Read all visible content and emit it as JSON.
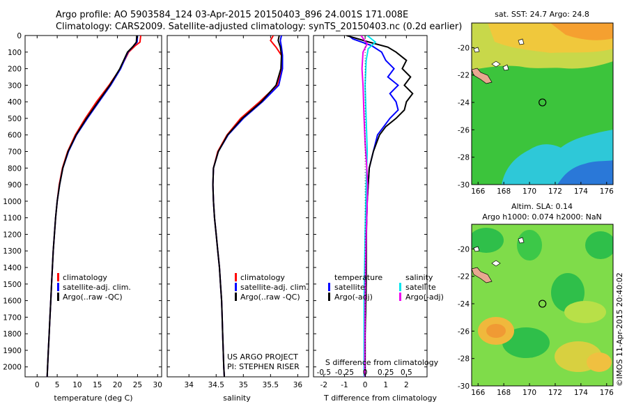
{
  "header": {
    "line1": "Argo profile: AO 5903584_124 03-Apr-2015 20150403_896 24.001S 171.008E",
    "line2": "Climatology: CARS2009. Satellite-adjusted climatology: synTS_20150403.nc (0.2d earlier)"
  },
  "colors": {
    "climatology": "#ff0000",
    "satellite": "#0000ff",
    "argo": "#000000",
    "salinity_sat": "#00e5ee",
    "salinity_argo": "#ee00ee"
  },
  "depth_axis": {
    "ylim": [
      0,
      2060
    ],
    "ticks": [
      0,
      100,
      200,
      300,
      400,
      500,
      600,
      700,
      800,
      900,
      1000,
      1100,
      1200,
      1300,
      1400,
      1500,
      1600,
      1700,
      1800,
      1900,
      2000
    ]
  },
  "chart_data": [
    {
      "type": "line",
      "name": "temperature-profile",
      "xlabel": "temperature (deg C)",
      "xlim": [
        -3,
        31
      ],
      "xticks": [
        0,
        5,
        10,
        15,
        20,
        25,
        30
      ],
      "legend": {
        "position": "lower-middle",
        "entries": [
          "climatology",
          "satellite-adj. clim.",
          "Argo(..raw -QC)"
        ]
      },
      "series": [
        {
          "name": "climatology",
          "color": "#ff0000",
          "points": [
            [
              25.8,
              0
            ],
            [
              25.6,
              40
            ],
            [
              24.5,
              60
            ],
            [
              22.8,
              100
            ],
            [
              20.7,
              200
            ],
            [
              17.9,
              300
            ],
            [
              14.8,
              400
            ],
            [
              12.0,
              500
            ],
            [
              9.5,
              600
            ],
            [
              7.6,
              700
            ],
            [
              6.3,
              800
            ],
            [
              5.5,
              900
            ],
            [
              5.0,
              1000
            ],
            [
              4.6,
              1100
            ],
            [
              4.3,
              1200
            ],
            [
              4.0,
              1300
            ],
            [
              3.8,
              1400
            ],
            [
              3.6,
              1500
            ],
            [
              3.4,
              1600
            ],
            [
              3.2,
              1700
            ],
            [
              3.0,
              1800
            ],
            [
              2.8,
              1900
            ],
            [
              2.6,
              2000
            ],
            [
              2.5,
              2060
            ]
          ]
        },
        {
          "name": "satellite-adj. clim.",
          "color": "#0000ff",
          "points": [
            [
              25.0,
              0
            ],
            [
              24.9,
              40
            ],
            [
              24.1,
              60
            ],
            [
              22.6,
              100
            ],
            [
              20.8,
              200
            ],
            [
              18.3,
              300
            ],
            [
              15.4,
              400
            ],
            [
              12.5,
              500
            ],
            [
              9.8,
              600
            ],
            [
              7.8,
              700
            ],
            [
              6.4,
              800
            ],
            [
              5.6,
              900
            ],
            [
              5.0,
              1000
            ],
            [
              4.6,
              1100
            ],
            [
              4.3,
              1200
            ],
            [
              4.0,
              1300
            ],
            [
              3.8,
              1400
            ],
            [
              3.6,
              1500
            ],
            [
              3.4,
              1600
            ],
            [
              3.2,
              1700
            ],
            [
              3.0,
              1800
            ],
            [
              2.8,
              1900
            ],
            [
              2.6,
              2000
            ],
            [
              2.5,
              2060
            ]
          ]
        },
        {
          "name": "Argo(..raw -QC)",
          "color": "#000000",
          "points": [
            [
              24.8,
              0
            ],
            [
              24.7,
              40
            ],
            [
              23.9,
              65
            ],
            [
              22.5,
              100
            ],
            [
              20.6,
              200
            ],
            [
              18.1,
              300
            ],
            [
              15.2,
              400
            ],
            [
              12.3,
              500
            ],
            [
              9.7,
              600
            ],
            [
              7.7,
              700
            ],
            [
              6.4,
              800
            ],
            [
              5.6,
              900
            ],
            [
              5.0,
              1000
            ],
            [
              4.6,
              1100
            ],
            [
              4.3,
              1200
            ],
            [
              4.0,
              1300
            ],
            [
              3.8,
              1400
            ],
            [
              3.6,
              1500
            ],
            [
              3.4,
              1600
            ],
            [
              3.2,
              1700
            ],
            [
              3.0,
              1800
            ],
            [
              2.8,
              1900
            ],
            [
              2.6,
              2000
            ],
            [
              2.5,
              2060
            ]
          ]
        }
      ]
    },
    {
      "type": "line",
      "name": "salinity-profile",
      "xlabel": "salinity",
      "xlim": [
        33.6,
        36.2
      ],
      "xticks": [
        34,
        34.5,
        35,
        35.5,
        36
      ],
      "legend": {
        "position": "lower-middle",
        "entries": [
          "climatology",
          "satellite-adj. clim.",
          "Argo(..raw -QC)"
        ]
      },
      "annotation": [
        "US ARGO PROJECT",
        "PI: STEPHEN RISER"
      ],
      "series": [
        {
          "name": "climatology",
          "color": "#ff0000",
          "points": [
            [
              35.55,
              0
            ],
            [
              35.5,
              30
            ],
            [
              35.6,
              70
            ],
            [
              35.7,
              120
            ],
            [
              35.7,
              200
            ],
            [
              35.62,
              300
            ],
            [
              35.3,
              400
            ],
            [
              34.95,
              500
            ],
            [
              34.7,
              600
            ],
            [
              34.53,
              700
            ],
            [
              34.45,
              800
            ],
            [
              34.44,
              900
            ],
            [
              34.45,
              1000
            ],
            [
              34.47,
              1100
            ],
            [
              34.5,
              1200
            ],
            [
              34.53,
              1300
            ],
            [
              34.56,
              1400
            ],
            [
              34.58,
              1500
            ],
            [
              34.6,
              1600
            ],
            [
              34.61,
              1700
            ],
            [
              34.62,
              1800
            ],
            [
              34.63,
              1900
            ],
            [
              34.64,
              2000
            ],
            [
              34.65,
              2060
            ]
          ]
        },
        {
          "name": "satellite-adj. clim.",
          "color": "#0000ff",
          "points": [
            [
              35.7,
              0
            ],
            [
              35.68,
              30
            ],
            [
              35.7,
              70
            ],
            [
              35.72,
              120
            ],
            [
              35.72,
              200
            ],
            [
              35.65,
              300
            ],
            [
              35.35,
              400
            ],
            [
              35.0,
              500
            ],
            [
              34.72,
              600
            ],
            [
              34.54,
              700
            ],
            [
              34.45,
              800
            ],
            [
              34.44,
              900
            ],
            [
              34.45,
              1000
            ],
            [
              34.47,
              1100
            ],
            [
              34.5,
              1200
            ],
            [
              34.53,
              1300
            ],
            [
              34.56,
              1400
            ],
            [
              34.58,
              1500
            ],
            [
              34.6,
              1600
            ],
            [
              34.61,
              1700
            ],
            [
              34.62,
              1800
            ],
            [
              34.63,
              1900
            ],
            [
              34.64,
              2000
            ],
            [
              34.65,
              2060
            ]
          ]
        },
        {
          "name": "Argo(..raw -QC)",
          "color": "#000000",
          "points": [
            [
              35.66,
              0
            ],
            [
              35.64,
              30
            ],
            [
              35.68,
              70
            ],
            [
              35.7,
              120
            ],
            [
              35.69,
              200
            ],
            [
              35.6,
              300
            ],
            [
              35.33,
              400
            ],
            [
              34.98,
              500
            ],
            [
              34.71,
              600
            ],
            [
              34.54,
              700
            ],
            [
              34.45,
              800
            ],
            [
              34.44,
              900
            ],
            [
              34.45,
              1000
            ],
            [
              34.47,
              1100
            ],
            [
              34.5,
              1200
            ],
            [
              34.53,
              1300
            ],
            [
              34.56,
              1400
            ],
            [
              34.58,
              1500
            ],
            [
              34.6,
              1600
            ],
            [
              34.61,
              1700
            ],
            [
              34.62,
              1800
            ],
            [
              34.63,
              1900
            ],
            [
              34.64,
              2000
            ],
            [
              34.65,
              2060
            ]
          ]
        }
      ]
    },
    {
      "type": "line",
      "name": "difference-profile",
      "xlabel": "T difference from climatology",
      "xlabel_top": "S difference from climatology",
      "xlim": [
        -2.5,
        3.0
      ],
      "xticks": [
        -2,
        -1,
        0,
        1,
        2
      ],
      "s_ticks": [
        {
          "value": -0.5,
          "label": "-0.5"
        },
        {
          "value": -0.25,
          "label": "-0.25"
        },
        {
          "value": 0,
          "label": "0"
        },
        {
          "value": 0.25,
          "label": "0.25"
        },
        {
          "value": 0.5,
          "label": "0.5"
        }
      ],
      "legend_left": {
        "title": "temperature",
        "entries": [
          "satellite",
          "Argo(-adj)"
        ]
      },
      "legend_right": {
        "title": "salinity",
        "entries": [
          "satellite",
          "Argo(-adj)"
        ]
      },
      "series": [
        {
          "name": "temperature satellite",
          "color": "#0000ff",
          "points": [
            [
              -0.8,
              0
            ],
            [
              -0.6,
              20
            ],
            [
              0.3,
              60
            ],
            [
              0.8,
              100
            ],
            [
              1.0,
              150
            ],
            [
              1.4,
              200
            ],
            [
              1.1,
              250
            ],
            [
              1.6,
              300
            ],
            [
              1.2,
              350
            ],
            [
              1.5,
              400
            ],
            [
              1.6,
              450
            ],
            [
              1.2,
              500
            ],
            [
              0.9,
              550
            ],
            [
              0.6,
              600
            ],
            [
              0.4,
              700
            ],
            [
              0.2,
              800
            ],
            [
              0.1,
              1000
            ],
            [
              0.05,
              1200
            ],
            [
              0.05,
              1500
            ],
            [
              0.0,
              1800
            ],
            [
              0.0,
              2060
            ]
          ]
        },
        {
          "name": "temperature Argo(-adj)",
          "color": "#000000",
          "points": [
            [
              -0.9,
              0
            ],
            [
              0.2,
              40
            ],
            [
              1.1,
              70
            ],
            [
              1.5,
              100
            ],
            [
              2.0,
              150
            ],
            [
              1.8,
              200
            ],
            [
              2.2,
              250
            ],
            [
              1.9,
              300
            ],
            [
              2.3,
              350
            ],
            [
              2.0,
              400
            ],
            [
              1.9,
              450
            ],
            [
              1.5,
              500
            ],
            [
              1.0,
              550
            ],
            [
              0.7,
              600
            ],
            [
              0.4,
              700
            ],
            [
              0.2,
              800
            ],
            [
              0.1,
              1000
            ],
            [
              0.06,
              1200
            ],
            [
              0.05,
              1500
            ],
            [
              0.0,
              1800
            ],
            [
              0.0,
              2060
            ]
          ]
        },
        {
          "name": "salinity satellite",
          "color": "#00e5ee",
          "points": [
            [
              0.1,
              0
            ],
            [
              0.5,
              40
            ],
            [
              0.15,
              80
            ],
            [
              0.05,
              150
            ],
            [
              0.0,
              300
            ],
            [
              0.05,
              500
            ],
            [
              0.1,
              700
            ],
            [
              0.05,
              900
            ],
            [
              0.0,
              1200
            ],
            [
              -0.05,
              1600
            ],
            [
              -0.05,
              2060
            ]
          ]
        },
        {
          "name": "salinity Argo(-adj)",
          "color": "#ee00ee",
          "points": [
            [
              -0.2,
              0
            ],
            [
              0.1,
              50
            ],
            [
              -0.1,
              100
            ],
            [
              -0.15,
              200
            ],
            [
              -0.1,
              300
            ],
            [
              -0.05,
              500
            ],
            [
              0.0,
              650
            ],
            [
              0.08,
              800
            ],
            [
              0.12,
              900
            ],
            [
              0.1,
              1000
            ],
            [
              0.08,
              1100
            ],
            [
              0.05,
              1200
            ],
            [
              0.02,
              1400
            ],
            [
              0.0,
              1600
            ],
            [
              -0.02,
              2060
            ]
          ]
        }
      ]
    },
    {
      "type": "heatmap",
      "name": "sst-map",
      "title": "sat. SST: 24.7  Argo: 24.8",
      "xlim": [
        165.5,
        176.5
      ],
      "ylim": [
        -30,
        -18.2
      ],
      "xticks": [
        166,
        168,
        170,
        172,
        174,
        176
      ],
      "yticks": [
        -20,
        -22,
        -24,
        -26,
        -28,
        -30
      ],
      "argo_position": {
        "lon": 171.008,
        "lat": -24.001
      }
    },
    {
      "type": "heatmap",
      "name": "sla-map",
      "title_line1": "Altim. SLA: 0.14",
      "title_line2": "Argo h1000: 0.074  h2000: NaN",
      "xlim": [
        165.5,
        176.5
      ],
      "ylim": [
        -30,
        -18.2
      ],
      "xticks": [
        166,
        168,
        170,
        172,
        174,
        176
      ],
      "yticks": [
        -20,
        -22,
        -24,
        -26,
        -28,
        -30
      ],
      "argo_position": {
        "lon": 171.008,
        "lat": -24.001
      }
    }
  ],
  "footer": {
    "credit": "©IMOS 11-Apr-2015 20:40:02"
  }
}
